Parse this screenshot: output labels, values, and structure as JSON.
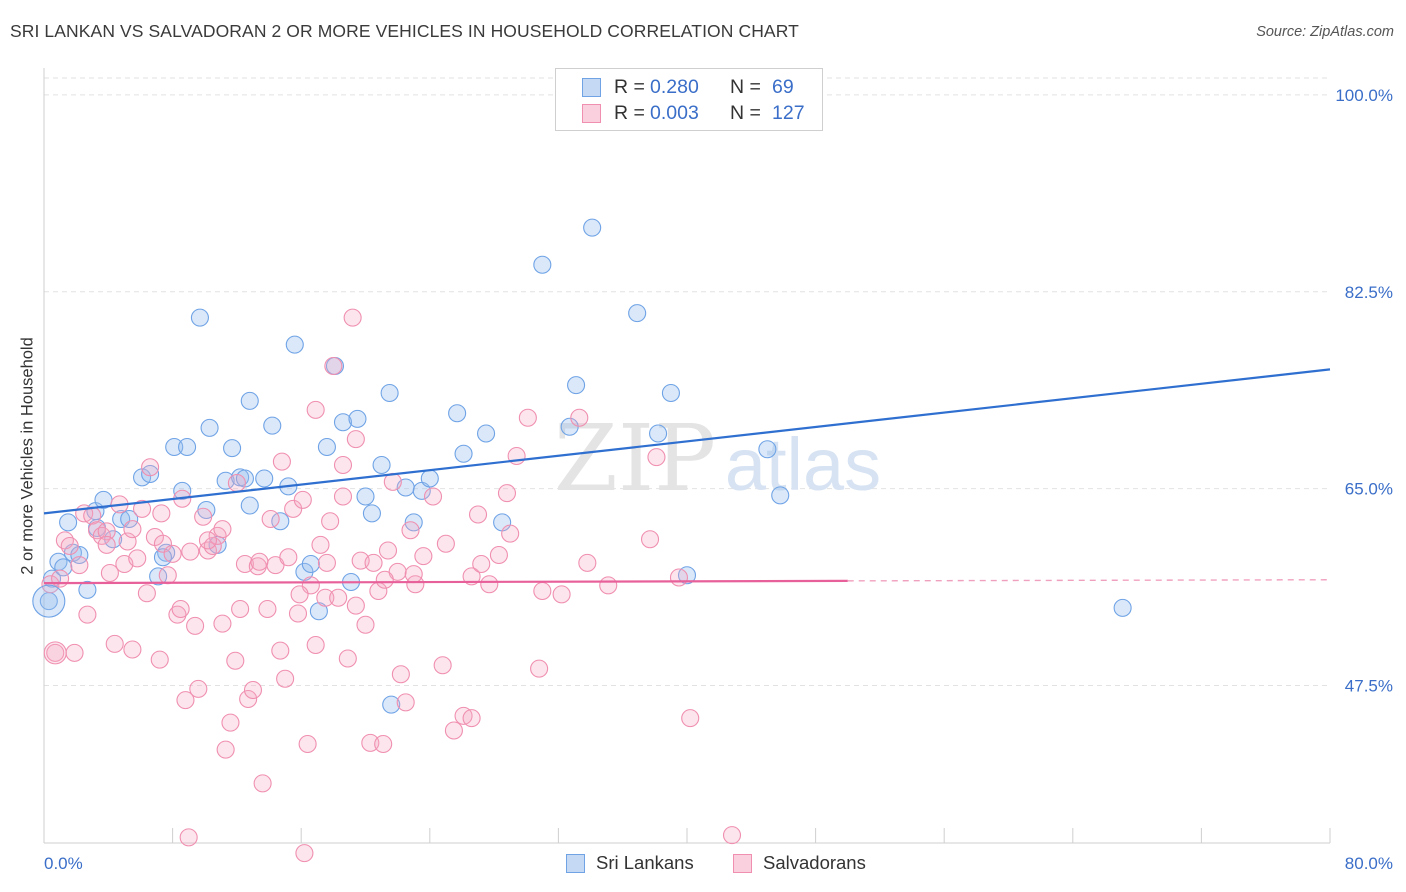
{
  "title": "SRI LANKAN VS SALVADORAN 2 OR MORE VEHICLES IN HOUSEHOLD CORRELATION CHART",
  "source": "Source: ZipAtlas.com",
  "watermark": {
    "zip": "ZIP",
    "atlas": "atlas"
  },
  "legend_top": [
    {
      "r_label": "R =",
      "r_value": "0.280",
      "n_label": "N =",
      "n_value": "69",
      "color": "#6fa3e6"
    },
    {
      "r_label": "R =",
      "r_value": "0.003",
      "n_label": "N =",
      "n_value": "127",
      "color": "#f08fb0"
    }
  ],
  "chart_data": {
    "type": "scatter",
    "title": "SRI LANKAN VS SALVADORAN 2 OR MORE VEHICLES IN HOUSEHOLD CORRELATION CHART",
    "xlabel": "",
    "ylabel": "2 or more Vehicles in Household",
    "xlim": [
      0,
      80
    ],
    "ylim": [
      33.5,
      101.5
    ],
    "x_tick_labels": [
      "0.0%",
      "80.0%"
    ],
    "y_ticks": [
      47.5,
      65.0,
      82.5,
      100.0
    ],
    "y_tick_labels": [
      "47.5%",
      "65.0%",
      "82.5%",
      "100.0%"
    ],
    "grid": true,
    "legend_placement": "bottom-center",
    "series": [
      {
        "name": "Sri Lankans",
        "color": "#6fa3e6",
        "R": 0.28,
        "N": 69,
        "trend": {
          "x": [
            0,
            80
          ],
          "y": [
            62.8,
            75.6
          ],
          "style": "solid"
        },
        "points": [
          [
            0.3,
            55.0
          ],
          [
            0.5,
            57.0
          ],
          [
            0.9,
            58.5
          ],
          [
            1.2,
            58.0
          ],
          [
            1.5,
            62.0
          ],
          [
            1.8,
            59.3
          ],
          [
            2.2,
            59.1
          ],
          [
            2.7,
            56.0
          ],
          [
            3.2,
            63.0
          ],
          [
            3.7,
            64.0
          ],
          [
            4.3,
            60.5
          ],
          [
            4.8,
            62.3
          ],
          [
            5.3,
            62.3
          ],
          [
            6.1,
            66.0
          ],
          [
            6.6,
            66.3
          ],
          [
            7.1,
            57.2
          ],
          [
            7.6,
            59.3
          ],
          [
            8.1,
            68.7
          ],
          [
            8.6,
            64.8
          ],
          [
            8.9,
            68.7
          ],
          [
            9.7,
            80.2
          ],
          [
            10.1,
            63.1
          ],
          [
            10.3,
            70.4
          ],
          [
            10.8,
            60.0
          ],
          [
            11.3,
            65.7
          ],
          [
            11.7,
            68.6
          ],
          [
            12.2,
            66.0
          ],
          [
            12.5,
            65.9
          ],
          [
            12.8,
            72.8
          ],
          [
            13.7,
            65.9
          ],
          [
            14.2,
            70.6
          ],
          [
            14.7,
            62.1
          ],
          [
            15.2,
            65.2
          ],
          [
            15.6,
            77.8
          ],
          [
            16.2,
            57.6
          ],
          [
            16.6,
            58.3
          ],
          [
            17.1,
            54.1
          ],
          [
            17.6,
            68.7
          ],
          [
            18.1,
            75.9
          ],
          [
            18.6,
            70.9
          ],
          [
            19.1,
            56.7
          ],
          [
            19.5,
            71.2
          ],
          [
            20.0,
            64.3
          ],
          [
            20.4,
            62.8
          ],
          [
            21.0,
            67.1
          ],
          [
            21.5,
            73.5
          ],
          [
            22.5,
            65.1
          ],
          [
            23.0,
            62.0
          ],
          [
            23.5,
            64.8
          ],
          [
            24.0,
            65.9
          ],
          [
            25.7,
            71.7
          ],
          [
            26.1,
            68.1
          ],
          [
            27.5,
            69.9
          ],
          [
            28.5,
            62.0
          ],
          [
            31.0,
            84.9
          ],
          [
            32.7,
            70.5
          ],
          [
            33.1,
            74.2
          ],
          [
            34.1,
            88.2
          ],
          [
            36.9,
            80.6
          ],
          [
            38.2,
            69.9
          ],
          [
            39.0,
            73.5
          ],
          [
            40.0,
            57.3
          ],
          [
            45.0,
            68.5
          ],
          [
            45.8,
            64.4
          ],
          [
            67.1,
            54.4
          ],
          [
            21.6,
            45.8
          ],
          [
            3.3,
            61.5
          ],
          [
            12.8,
            63.5
          ],
          [
            7.4,
            58.9
          ]
        ]
      },
      {
        "name": "Salvadorans",
        "color": "#f08fb0",
        "R": 0.003,
        "N": 127,
        "trend": {
          "x": [
            0,
            50
          ],
          "y": [
            56.6,
            56.8
          ],
          "style": "solid",
          "extension": {
            "x": [
              50,
              80
            ],
            "y": [
              56.8,
              56.9
            ],
            "style": "dashed"
          }
        },
        "points": [
          [
            0.4,
            56.5
          ],
          [
            0.7,
            50.4
          ],
          [
            1.0,
            57.0
          ],
          [
            1.3,
            60.4
          ],
          [
            1.6,
            59.9
          ],
          [
            1.9,
            50.4
          ],
          [
            2.2,
            58.2
          ],
          [
            2.5,
            62.8
          ],
          [
            2.7,
            53.8
          ],
          [
            3.0,
            62.6
          ],
          [
            3.3,
            61.3
          ],
          [
            3.6,
            60.8
          ],
          [
            3.9,
            61.2
          ],
          [
            4.1,
            57.5
          ],
          [
            4.4,
            51.2
          ],
          [
            4.7,
            63.6
          ],
          [
            5.0,
            58.3
          ],
          [
            5.2,
            60.3
          ],
          [
            5.5,
            50.7
          ],
          [
            5.8,
            58.8
          ],
          [
            6.1,
            63.2
          ],
          [
            6.4,
            55.7
          ],
          [
            6.6,
            66.9
          ],
          [
            6.9,
            60.7
          ],
          [
            7.2,
            49.8
          ],
          [
            7.4,
            60.1
          ],
          [
            7.7,
            57.3
          ],
          [
            8.0,
            59.2
          ],
          [
            8.3,
            53.8
          ],
          [
            8.5,
            54.3
          ],
          [
            8.8,
            46.2
          ],
          [
            9.1,
            59.4
          ],
          [
            9.4,
            52.8
          ],
          [
            9.6,
            47.2
          ],
          [
            9.9,
            62.5
          ],
          [
            10.2,
            59.5
          ],
          [
            10.5,
            59.9
          ],
          [
            10.8,
            60.8
          ],
          [
            11.1,
            53.0
          ],
          [
            11.3,
            41.8
          ],
          [
            11.6,
            44.2
          ],
          [
            11.9,
            49.7
          ],
          [
            12.2,
            54.3
          ],
          [
            12.5,
            58.3
          ],
          [
            12.7,
            46.3
          ],
          [
            13.0,
            47.1
          ],
          [
            13.3,
            58.1
          ],
          [
            13.6,
            38.8
          ],
          [
            13.9,
            54.3
          ],
          [
            14.1,
            62.3
          ],
          [
            14.4,
            58.2
          ],
          [
            14.7,
            50.6
          ],
          [
            15.0,
            48.1
          ],
          [
            15.2,
            58.9
          ],
          [
            15.5,
            63.2
          ],
          [
            15.8,
            53.9
          ],
          [
            16.1,
            64.0
          ],
          [
            16.4,
            42.3
          ],
          [
            16.6,
            56.4
          ],
          [
            16.9,
            51.1
          ],
          [
            17.2,
            60.0
          ],
          [
            17.5,
            55.3
          ],
          [
            17.8,
            62.1
          ],
          [
            18.0,
            75.9
          ],
          [
            18.3,
            55.3
          ],
          [
            18.6,
            67.1
          ],
          [
            18.9,
            49.9
          ],
          [
            19.2,
            80.2
          ],
          [
            19.4,
            69.4
          ],
          [
            19.7,
            58.6
          ],
          [
            20.0,
            52.9
          ],
          [
            20.3,
            42.4
          ],
          [
            20.5,
            58.4
          ],
          [
            20.8,
            55.9
          ],
          [
            21.1,
            42.3
          ],
          [
            21.4,
            59.5
          ],
          [
            21.7,
            65.6
          ],
          [
            22.0,
            57.6
          ],
          [
            22.2,
            48.5
          ],
          [
            22.5,
            46.0
          ],
          [
            22.8,
            61.3
          ],
          [
            23.1,
            56.5
          ],
          [
            23.6,
            59.0
          ],
          [
            24.2,
            64.3
          ],
          [
            24.8,
            49.3
          ],
          [
            25.5,
            43.5
          ],
          [
            26.1,
            44.8
          ],
          [
            26.6,
            57.2
          ],
          [
            27.2,
            58.3
          ],
          [
            27.7,
            56.5
          ],
          [
            28.3,
            59.1
          ],
          [
            28.8,
            64.6
          ],
          [
            29.4,
            67.9
          ],
          [
            30.1,
            71.3
          ],
          [
            30.8,
            49.0
          ],
          [
            32.2,
            55.6
          ],
          [
            33.3,
            71.3
          ],
          [
            33.8,
            58.4
          ],
          [
            35.1,
            56.4
          ],
          [
            37.7,
            60.5
          ],
          [
            38.1,
            67.8
          ],
          [
            39.5,
            57.1
          ],
          [
            40.2,
            44.6
          ],
          [
            42.8,
            34.2
          ],
          [
            9.0,
            34.0
          ],
          [
            16.2,
            32.6
          ],
          [
            26.6,
            44.6
          ],
          [
            10.2,
            60.4
          ],
          [
            12.0,
            65.5
          ],
          [
            14.8,
            67.4
          ],
          [
            16.9,
            72.0
          ],
          [
            18.6,
            64.3
          ],
          [
            3.9,
            60.0
          ],
          [
            5.5,
            61.4
          ],
          [
            7.3,
            62.8
          ],
          [
            8.6,
            64.1
          ],
          [
            11.1,
            61.4
          ],
          [
            13.4,
            58.5
          ],
          [
            15.9,
            55.6
          ],
          [
            17.6,
            58.4
          ],
          [
            19.4,
            54.6
          ],
          [
            21.2,
            56.9
          ],
          [
            23.0,
            57.4
          ],
          [
            25.0,
            60.1
          ],
          [
            27.0,
            62.7
          ],
          [
            29.0,
            61.0
          ],
          [
            31.0,
            55.9
          ]
        ]
      }
    ]
  }
}
